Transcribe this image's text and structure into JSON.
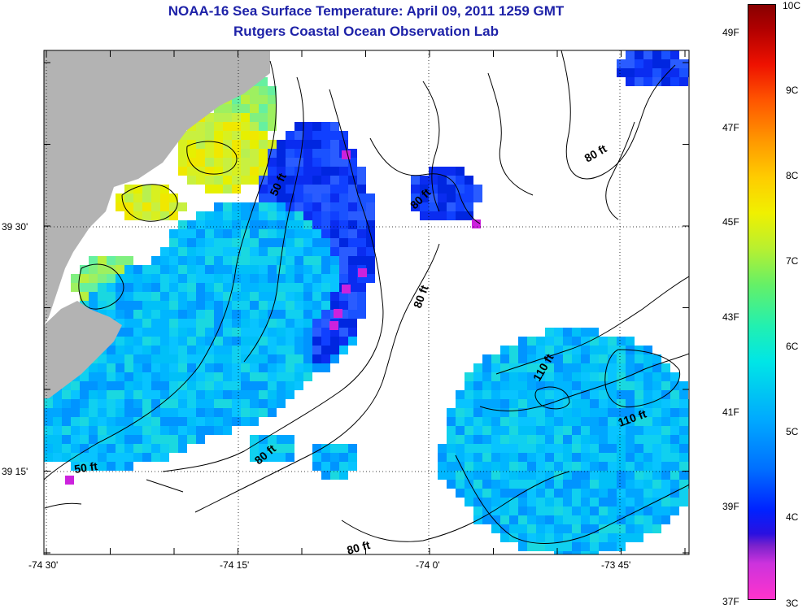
{
  "title": "NOAA-16 Sea Surface Temperature:  April 09, 2011 1259 GMT",
  "subtitle": "Rutgers Coastal Ocean Observation Lab",
  "longitude_labels": [
    "-74 30'",
    "-74 15'",
    "-74 0'",
    "-73 45'"
  ],
  "latitude_labels": [
    "39 30'",
    "39 15'"
  ],
  "contour_labels": [
    "50 ft",
    "80 ft",
    "80 ft",
    "80 ft",
    "110 ft",
    "110 ft",
    "80 ft",
    "50 ft",
    "80 ft"
  ],
  "colorbar": {
    "celsius_labels": [
      "10C",
      "9C",
      "8C",
      "7C",
      "6C",
      "5C",
      "4C",
      "3C"
    ],
    "fahrenheit_labels": [
      "49F",
      "47F",
      "45F",
      "43F",
      "41F",
      "39F",
      "37F"
    ]
  },
  "colors": {
    "land": "#b3b3b3",
    "title": "#1e22a8",
    "background": "#ffffff"
  }
}
